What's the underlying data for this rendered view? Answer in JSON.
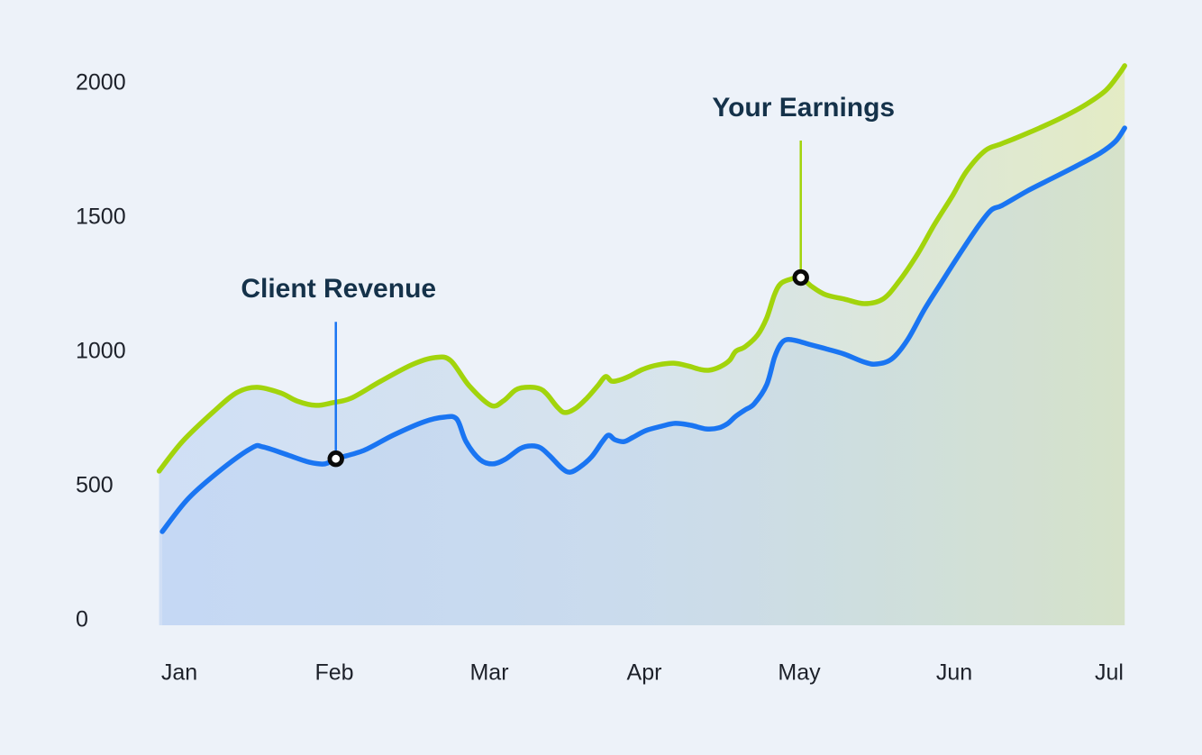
{
  "page": {
    "background": "#edf2f9",
    "description": "Area/line chart comparing client revenue and freelancer earnings, Jan through Jul"
  },
  "chart_data": {
    "type": "area",
    "title": "",
    "xlabel": "",
    "ylabel": "",
    "x_categories": [
      "Jan",
      "Feb",
      "Mar",
      "Apr",
      "May",
      "Jun",
      "Jul"
    ],
    "y_tick_labels": [
      "2000",
      "1500",
      "1000",
      "500",
      "0"
    ],
    "y_tick_values": [
      2000,
      1500,
      1000,
      500,
      0
    ],
    "ylim": [
      0,
      2100
    ],
    "grid": false,
    "legend_position": "none-inline-callouts",
    "colors": {
      "earnings_line": "#a2d40c",
      "revenue_line": "#1a75f2",
      "area_gradient_left": "#a7c5f0",
      "area_gradient_right": "#dfe8a8",
      "marker_ring": "#0a0a0a",
      "marker_fill": "#ffffff",
      "tick_text": "#1d212a",
      "annotation_text": "#15324a"
    },
    "series": [
      {
        "name": "Your Earnings",
        "color": "#a2d40c",
        "points": [
          [
            -0.13,
            554
          ],
          [
            0.02,
            664
          ],
          [
            0.22,
            775
          ],
          [
            0.37,
            846
          ],
          [
            0.5,
            866
          ],
          [
            0.65,
            846
          ],
          [
            0.76,
            815
          ],
          [
            0.88,
            799
          ],
          [
            0.99,
            809
          ],
          [
            1.11,
            826
          ],
          [
            1.3,
            889
          ],
          [
            1.5,
            950
          ],
          [
            1.65,
            977
          ],
          [
            1.75,
            966
          ],
          [
            1.87,
            872
          ],
          [
            2.01,
            799
          ],
          [
            2.09,
            815
          ],
          [
            2.17,
            856
          ],
          [
            2.24,
            866
          ],
          [
            2.32,
            862
          ],
          [
            2.37,
            842
          ],
          [
            2.44,
            792
          ],
          [
            2.49,
            772
          ],
          [
            2.56,
            789
          ],
          [
            2.63,
            826
          ],
          [
            2.7,
            872
          ],
          [
            2.75,
            906
          ],
          [
            2.79,
            889
          ],
          [
            2.84,
            893
          ],
          [
            2.91,
            909
          ],
          [
            2.99,
            933
          ],
          [
            3.09,
            950
          ],
          [
            3.19,
            956
          ],
          [
            3.28,
            946
          ],
          [
            3.36,
            933
          ],
          [
            3.42,
            930
          ],
          [
            3.49,
            943
          ],
          [
            3.55,
            966
          ],
          [
            3.59,
            1000
          ],
          [
            3.65,
            1017
          ],
          [
            3.73,
            1060
          ],
          [
            3.79,
            1124
          ],
          [
            3.84,
            1211
          ],
          [
            3.88,
            1252
          ],
          [
            3.94,
            1268
          ],
          [
            4.01,
            1275
          ],
          [
            4.08,
            1242
          ],
          [
            4.17,
            1211
          ],
          [
            4.29,
            1195
          ],
          [
            4.42,
            1178
          ],
          [
            4.54,
            1195
          ],
          [
            4.64,
            1258
          ],
          [
            4.76,
            1359
          ],
          [
            4.87,
            1470
          ],
          [
            4.99,
            1581
          ],
          [
            5.08,
            1671
          ],
          [
            5.2,
            1748
          ],
          [
            5.3,
            1772
          ],
          [
            5.4,
            1795
          ],
          [
            5.55,
            1832
          ],
          [
            5.7,
            1872
          ],
          [
            5.86,
            1923
          ],
          [
            5.98,
            1973
          ],
          [
            6.06,
            2030
          ],
          [
            6.1,
            2064
          ]
        ]
      },
      {
        "name": "Client Revenue",
        "color": "#1a75f2",
        "points": [
          [
            -0.11,
            329
          ],
          [
            0.06,
            453
          ],
          [
            0.28,
            564
          ],
          [
            0.47,
            641
          ],
          [
            0.54,
            644
          ],
          [
            0.7,
            614
          ],
          [
            0.84,
            587
          ],
          [
            0.94,
            581
          ],
          [
            1.01,
            600
          ],
          [
            1.19,
            631
          ],
          [
            1.38,
            688
          ],
          [
            1.58,
            738
          ],
          [
            1.71,
            755
          ],
          [
            1.79,
            748
          ],
          [
            1.85,
            664
          ],
          [
            1.94,
            597
          ],
          [
            2.02,
            581
          ],
          [
            2.1,
            597
          ],
          [
            2.2,
            638
          ],
          [
            2.27,
            648
          ],
          [
            2.33,
            641
          ],
          [
            2.39,
            611
          ],
          [
            2.47,
            564
          ],
          [
            2.52,
            550
          ],
          [
            2.58,
            567
          ],
          [
            2.66,
            607
          ],
          [
            2.73,
            664
          ],
          [
            2.77,
            688
          ],
          [
            2.81,
            671
          ],
          [
            2.87,
            664
          ],
          [
            2.93,
            681
          ],
          [
            3.01,
            705
          ],
          [
            3.11,
            721
          ],
          [
            3.2,
            732
          ],
          [
            3.3,
            725
          ],
          [
            3.4,
            711
          ],
          [
            3.48,
            715
          ],
          [
            3.54,
            732
          ],
          [
            3.59,
            758
          ],
          [
            3.65,
            782
          ],
          [
            3.71,
            805
          ],
          [
            3.79,
            876
          ],
          [
            3.84,
            977
          ],
          [
            3.88,
            1027
          ],
          [
            3.92,
            1044
          ],
          [
            3.98,
            1040
          ],
          [
            4.06,
            1027
          ],
          [
            4.17,
            1010
          ],
          [
            4.29,
            990
          ],
          [
            4.42,
            960
          ],
          [
            4.5,
            953
          ],
          [
            4.6,
            973
          ],
          [
            4.7,
            1044
          ],
          [
            4.81,
            1158
          ],
          [
            4.93,
            1268
          ],
          [
            5.05,
            1376
          ],
          [
            5.16,
            1470
          ],
          [
            5.24,
            1527
          ],
          [
            5.31,
            1544
          ],
          [
            5.47,
            1597
          ],
          [
            5.63,
            1644
          ],
          [
            5.78,
            1688
          ],
          [
            5.94,
            1738
          ],
          [
            6.04,
            1782
          ],
          [
            6.1,
            1832
          ]
        ]
      }
    ],
    "annotations": [
      {
        "label": "Client Revenue",
        "series": "Client Revenue",
        "month": "Feb",
        "month_index": 1.01,
        "value": 600,
        "color": "#1a75f2"
      },
      {
        "label": "Your Earnings",
        "series": "Your Earnings",
        "month": "May",
        "month_index": 4.01,
        "value": 1275,
        "color": "#a2d40c"
      }
    ]
  }
}
